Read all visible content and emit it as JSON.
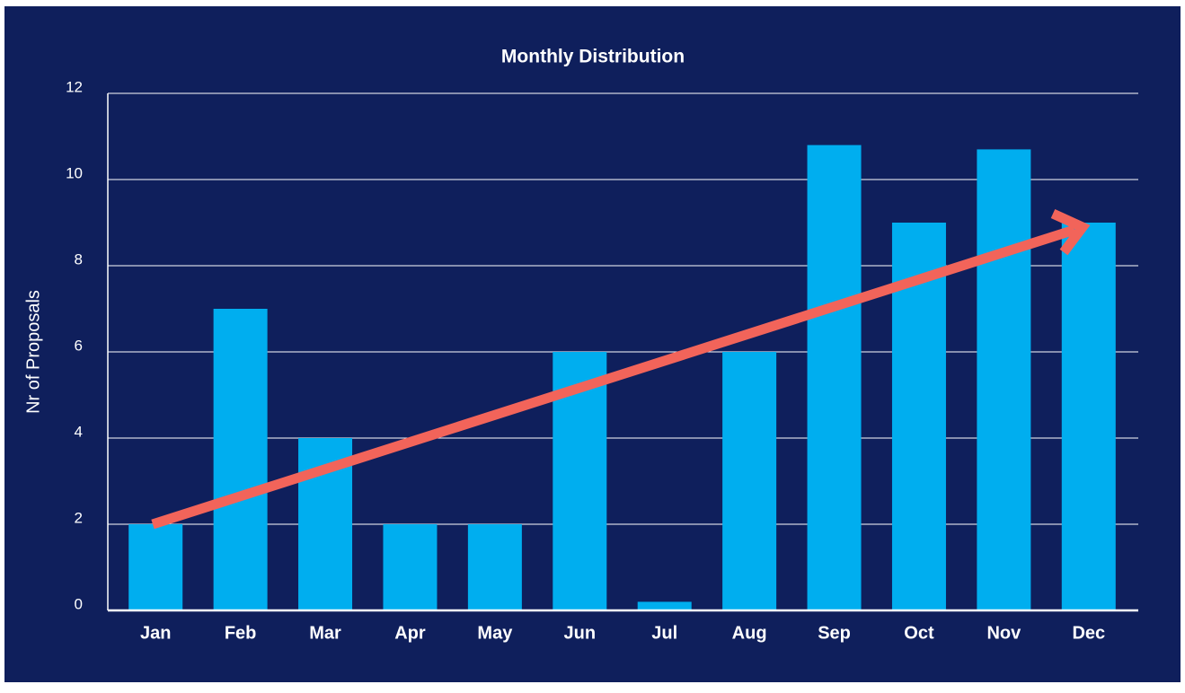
{
  "chart_data": {
    "type": "bar",
    "title": "Monthly Distribution",
    "y_label": "Nr of Proposals",
    "categories": [
      "Jan",
      "Feb",
      "Mar",
      "Apr",
      "May",
      "Jun",
      "Jul",
      "Aug",
      "Sep",
      "Oct",
      "Nov",
      "Dec"
    ],
    "values": [
      2,
      7,
      4,
      2,
      2,
      6,
      0.2,
      6,
      10.8,
      9,
      10.7,
      9
    ],
    "color": "#00aeef",
    "ylim": [
      0,
      12
    ],
    "yticks": [
      0,
      2,
      4,
      6,
      8,
      10,
      12
    ],
    "grid": true
  }
}
